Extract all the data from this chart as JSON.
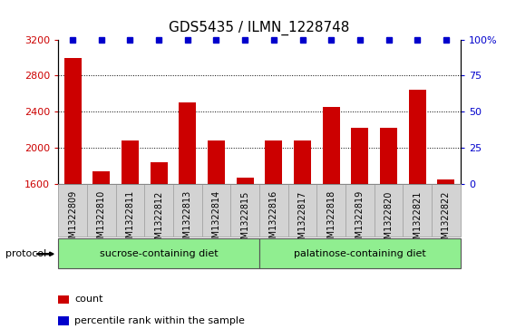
{
  "title": "GDS5435 / ILMN_1228748",
  "samples": [
    "GSM1322809",
    "GSM1322810",
    "GSM1322811",
    "GSM1322812",
    "GSM1322813",
    "GSM1322814",
    "GSM1322815",
    "GSM1322816",
    "GSM1322817",
    "GSM1322818",
    "GSM1322819",
    "GSM1322820",
    "GSM1322821",
    "GSM1322822"
  ],
  "counts": [
    3000,
    1740,
    2080,
    1840,
    2500,
    2080,
    1670,
    2080,
    2080,
    2450,
    2220,
    2220,
    2640,
    1650
  ],
  "percentile_ranks": [
    100,
    100,
    100,
    100,
    100,
    100,
    100,
    100,
    100,
    100,
    100,
    100,
    100,
    100
  ],
  "bar_color": "#cc0000",
  "dot_color": "#0000cc",
  "ylim_left": [
    1600,
    3200
  ],
  "ylim_right": [
    0,
    100
  ],
  "yticks_left": [
    1600,
    2000,
    2400,
    2800,
    3200
  ],
  "yticks_right": [
    0,
    25,
    50,
    75,
    100
  ],
  "ytick_labels_right": [
    "0",
    "25",
    "50",
    "75",
    "100%"
  ],
  "grid_values": [
    2000,
    2400,
    2800
  ],
  "sucrose_count": 7,
  "palatinose_count": 7,
  "protocol_groups": [
    {
      "label": "sucrose-containing diet",
      "color": "#90ee90"
    },
    {
      "label": "palatinose-containing diet",
      "color": "#90ee90"
    }
  ],
  "protocol_label": "protocol",
  "legend_items": [
    {
      "color": "#cc0000",
      "label": "count"
    },
    {
      "color": "#0000cc",
      "label": "percentile rank within the sample"
    }
  ],
  "sample_bg_color": "#d3d3d3",
  "title_fontsize": 11,
  "tick_fontsize": 8,
  "label_fontsize": 7
}
